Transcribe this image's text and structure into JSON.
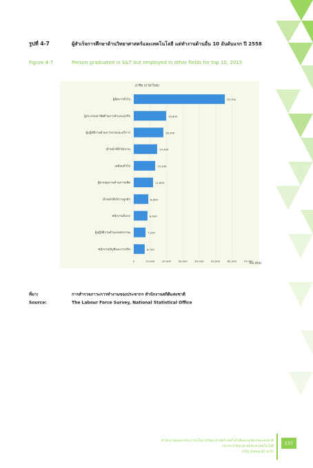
{
  "header": {
    "th_label": "รูปที่ 4-7",
    "th_title": "ผู้สำเร็จการศึกษาด้านวิทยาศาสตร์และเทคโนโลยี แต่ทำงานด้านอื่น 10 อันดับแรก ปี 2558",
    "en_label": "Figure 4-7",
    "en_title": "Person graduated in S&T but employed in other fields for top 10, 2015"
  },
  "chart_data": {
    "type": "bar",
    "orientation": "horizontal",
    "y_label": "อาชีพ (ภาษาไทย)",
    "x_label": "คน (คน)",
    "categories": [
      "ผู้จัดการทั่วไป",
      "ผู้ประกอบอาชีพด้านการค้าและธุรกิจ",
      "ผู้ปฏิบัติงานด้านการขายและบริการ",
      "เจ้าหน้าที่สำนักงาน",
      "เสมียนทั่วไป",
      "ผู้ควบคุมงานด้านการผลิต",
      "เจ้าหน้าที่บริการลูกค้า",
      "พนักงานขับรถ",
      "ผู้ปฏิบัติงานด้านเกษตรกรรม",
      "พนักงานบัญชีและการเงิน"
    ],
    "values": [
      55700,
      19800,
      18100,
      14300,
      13100,
      11800,
      8900,
      8400,
      7200,
      6700
    ],
    "value_labels": [
      "55,700",
      "19,800",
      "18,100",
      "14,300",
      "13,100",
      "11,800",
      "8,900",
      "8,400",
      "7,200",
      "6,700"
    ],
    "color": "#3b8fdc",
    "grid": true,
    "xlim": [
      0,
      70000
    ],
    "xticks": [
      0,
      {
        "value": 10000,
        "label": "10,000"
      },
      {
        "value": 20000,
        "label": "20,000"
      },
      {
        "value": 30000,
        "label": "30,000"
      },
      {
        "value": 40000,
        "label": "40,000"
      },
      {
        "value": 50000,
        "label": "50,000"
      },
      {
        "value": 60000,
        "label": "60,000"
      },
      {
        "value": 70000,
        "label": "70,000"
      }
    ]
  },
  "source": {
    "th_label": "ที่มา:",
    "th_text": "การสำรวจภาวะการทำงานของประชากร สำนักงานสถิติแห่งชาติ",
    "en_label": "Source:",
    "en_text": "The Labour Force Survey, National Statistical Office"
  },
  "footer": {
    "line1": "สำนักงานคณะกรรมการนโยบายวิทยาศาสตร์ เทคโนโลยีและนวัตกรรมแห่งชาติ",
    "line2": "กระทรวงวิทยาศาสตร์และเทคโนโลยี",
    "line3": "http://www.sti.or.th",
    "page": "137"
  }
}
